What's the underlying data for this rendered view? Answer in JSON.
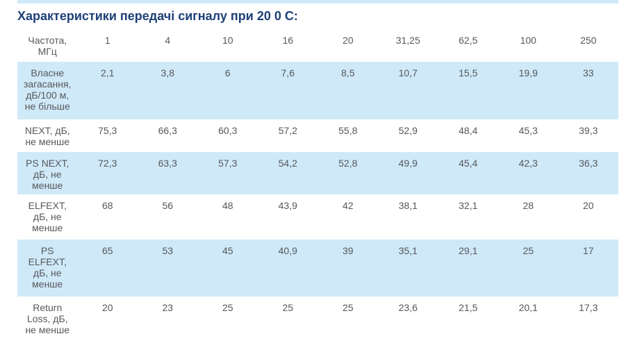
{
  "section": {
    "title": "Характеристики передачі сигналу при 20 0 С:"
  },
  "colors": {
    "title_text": "#1e4077",
    "row_highlight": "#cfe9f8",
    "body_text": "#56575b"
  },
  "table": {
    "header": {
      "label": "Частота,\nМГц",
      "frequencies": [
        "1",
        "4",
        "10",
        "16",
        "20",
        "31,25",
        "62,5",
        "100",
        "250"
      ]
    },
    "rows": [
      {
        "label": "Власне\nзагасання,\nдБ/100 м,\nне більше",
        "highlighted": true,
        "values": [
          "2,1",
          "3,8",
          "6",
          "7,6",
          "8,5",
          "10,7",
          "15,5",
          "19,9",
          "33"
        ]
      },
      {
        "label": "NEXT, дБ,\nне менше",
        "highlighted": false,
        "values": [
          "75,3",
          "66,3",
          "60,3",
          "57,2",
          "55,8",
          "52,9",
          "48,4",
          "45,3",
          "39,3"
        ]
      },
      {
        "label": "PS NEXT,\nдБ, не\nменше",
        "highlighted": true,
        "values": [
          "72,3",
          "63,3",
          "57,3",
          "54,2",
          "52,8",
          "49,9",
          "45,4",
          "42,3",
          "36,3"
        ]
      },
      {
        "label": "ELFEXT,\nдБ, не\nменше",
        "highlighted": false,
        "values": [
          "68",
          "56",
          "48",
          "43,9",
          "42",
          "38,1",
          "32,1",
          "28",
          "20"
        ]
      },
      {
        "label": "PS\nELFEXT,\nдБ, не\nменше",
        "highlighted": true,
        "values": [
          "65",
          "53",
          "45",
          "40,9",
          "39",
          "35,1",
          "29,1",
          "25",
          "17"
        ]
      },
      {
        "label": "Return\nLoss, дБ,\nне менше",
        "highlighted": false,
        "values": [
          "20",
          "23",
          "25",
          "25",
          "25",
          "23,6",
          "21,5",
          "20,1",
          "17,3"
        ]
      }
    ]
  }
}
